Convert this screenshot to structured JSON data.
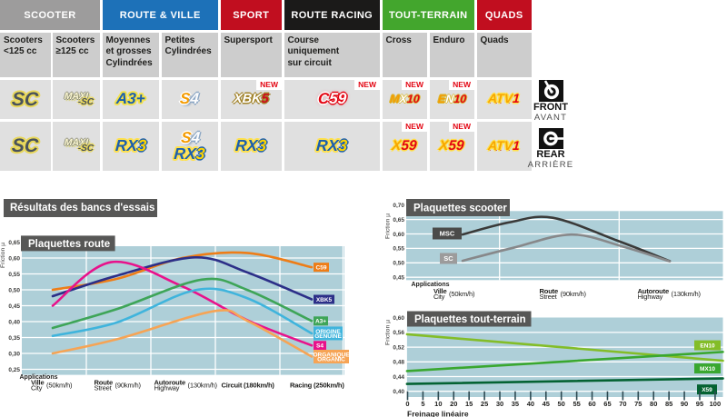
{
  "table": {
    "groups": [
      {
        "label": "SCOOTER",
        "color": "#9d9c9c",
        "cols": [
          0,
          1
        ]
      },
      {
        "label": "ROUTE & VILLE",
        "color": "#1d71b8",
        "cols": [
          2,
          3
        ]
      },
      {
        "label": "SPORT",
        "color": "#c10e1f",
        "cols": [
          4
        ]
      },
      {
        "label": "ROUTE RACING",
        "color": "#1b1a19",
        "cols": [
          5
        ]
      },
      {
        "label": "TOUT-TERRAIN",
        "color": "#43a62d",
        "cols": [
          6,
          7
        ]
      },
      {
        "label": "QUADS",
        "color": "#c10e1f",
        "cols": [
          8
        ]
      }
    ],
    "columns": [
      {
        "subtitle": "Scooters\n<125 cc",
        "front": {
          "logo": [
            [
              [
                "SC",
                "lg-sc"
              ]
            ]
          ],
          "new": false
        },
        "rear": {
          "logo": [
            [
              [
                "SC",
                "lg-sc"
              ]
            ]
          ],
          "new": false
        }
      },
      {
        "subtitle": "Scooters\n≥125 cc",
        "front": {
          "logo": [
            [
              [
                "MAXI",
                "lg-maxi"
              ],
              [
                "-SC",
                "lg-maxisc"
              ]
            ]
          ],
          "new": false
        },
        "rear": {
          "logo": [
            [
              [
                "MAXI",
                "lg-maxi"
              ],
              [
                "-SC",
                "lg-maxisc"
              ]
            ]
          ],
          "new": false
        }
      },
      {
        "subtitle": "Moyennes\net grosses\nCylindrées",
        "front": {
          "logo": [
            [
              [
                "A3+",
                "lg-a3"
              ]
            ]
          ],
          "new": false
        },
        "rear": {
          "logo": [
            [
              [
                "RX",
                "lg-rx"
              ],
              [
                "3",
                "lg-r3"
              ]
            ]
          ],
          "new": false
        }
      },
      {
        "subtitle": "Petites\nCylindrées",
        "front": {
          "logo": [
            [
              [
                "S",
                "lg-s4s"
              ],
              [
                "4",
                "lg-s44"
              ]
            ]
          ],
          "new": false
        },
        "rear": {
          "logo": [
            [
              [
                "S",
                "lg-s4s"
              ],
              [
                "4",
                "lg-s44"
              ]
            ],
            [
              [
                "RX",
                "lg-rx"
              ],
              [
                "3",
                "lg-r3"
              ]
            ]
          ],
          "new": false
        }
      },
      {
        "subtitle": "Supersport",
        "front": {
          "logo": [
            [
              [
                "XBK",
                "lg-xbk"
              ],
              [
                "5",
                "lg-k5"
              ]
            ]
          ],
          "new": true
        },
        "rear": {
          "logo": [
            [
              [
                "RX",
                "lg-rx"
              ],
              [
                "3",
                "lg-r3"
              ]
            ]
          ],
          "new": false
        }
      },
      {
        "subtitle": "Course\nuniquement\nsur circuit",
        "front": {
          "logo": [
            [
              [
                "C",
                "lg-c"
              ],
              [
                "59",
                "lg-59"
              ]
            ]
          ],
          "new": true
        },
        "rear": {
          "logo": [
            [
              [
                "RX",
                "lg-rx"
              ],
              [
                "3",
                "lg-r3"
              ]
            ]
          ],
          "new": false
        }
      },
      {
        "subtitle": "Cross",
        "front": {
          "logo": [
            [
              [
                "M",
                "lg-or"
              ],
              [
                "X",
                "lg-wh"
              ],
              [
                "10",
                "lg-rd"
              ]
            ]
          ],
          "new": true
        },
        "rear": {
          "logo": [
            [
              [
                "X",
                "lg-or2"
              ],
              [
                "59",
                "lg-rd3"
              ]
            ]
          ],
          "new": true
        }
      },
      {
        "subtitle": "Enduro",
        "front": {
          "logo": [
            [
              [
                "E",
                "lg-or"
              ],
              [
                "N",
                "lg-wh"
              ],
              [
                "10",
                "lg-rd"
              ]
            ]
          ],
          "new": true
        },
        "rear": {
          "logo": [
            [
              [
                "X",
                "lg-or2"
              ],
              [
                "59",
                "lg-rd3"
              ]
            ]
          ],
          "new": true
        }
      },
      {
        "subtitle": "Quads",
        "front": {
          "logo": [
            [
              [
                "ATV",
                "lg-atv"
              ],
              [
                "1",
                "lg-rd2"
              ]
            ]
          ],
          "new": false
        },
        "rear": {
          "logo": [
            [
              [
                "ATV",
                "lg-atv"
              ],
              [
                "1",
                "lg-rd2"
              ]
            ]
          ],
          "new": false
        }
      }
    ],
    "new_label": "NEW",
    "front": {
      "label": "FRONT",
      "sub": "AVANT"
    },
    "rear": {
      "label": "REAR",
      "sub": "ARRIÈRE"
    }
  },
  "results_title": "Résultats des bancs d'essais",
  "chart_data": [
    {
      "id": "route",
      "type": "line",
      "title": "Plaquettes route",
      "ylabel": "Friction µ",
      "xlabel": "Applications",
      "ylim": [
        0.25,
        0.65
      ],
      "y_ticks": [
        "0,65",
        "0,60",
        "0,55",
        "0,50",
        "0,45",
        "0,40",
        "0,35",
        "0,30",
        "0,25"
      ],
      "categories": [
        {
          "line1": "Ville",
          "line2": "City",
          "speed": "(50km/h)"
        },
        {
          "line1": "Route",
          "line2": "Street",
          "speed": "(90km/h)"
        },
        {
          "line1": "Autoroute",
          "line2": "Highway",
          "speed": "(130km/h)"
        },
        {
          "line1": "Circuit",
          "speed": "(180km/h)"
        },
        {
          "line1": "Racing",
          "speed": "(250km/h)"
        }
      ],
      "series": [
        {
          "name": "C59",
          "label": [
            "C59"
          ],
          "color": "#ee7d17",
          "points": [
            [
              0,
              0.5
            ],
            [
              1,
              0.535
            ],
            [
              2,
              0.6
            ],
            [
              3,
              0.616
            ],
            [
              4,
              0.571
            ]
          ]
        },
        {
          "name": "XBK5",
          "label": [
            "XBK5"
          ],
          "color": "#2c2f88",
          "points": [
            [
              0,
              0.48
            ],
            [
              1,
              0.545
            ],
            [
              2.2,
              0.602
            ],
            [
              3,
              0.555
            ],
            [
              4,
              0.47
            ]
          ]
        },
        {
          "name": "S4",
          "label": [
            "S4"
          ],
          "color": "#e8128b",
          "points": [
            [
              0,
              0.45
            ],
            [
              0.9,
              0.587
            ],
            [
              2,
              0.511
            ],
            [
              3,
              0.405
            ],
            [
              4,
              0.325
            ]
          ]
        },
        {
          "name": "A3+",
          "label": [
            "A3+"
          ],
          "color": "#3ea558",
          "points": [
            [
              0,
              0.38
            ],
            [
              1,
              0.44
            ],
            [
              2.3,
              0.532
            ],
            [
              3,
              0.5
            ],
            [
              4,
              0.402
            ]
          ]
        },
        {
          "name": "ORIGINE",
          "label": [
            "ORIGINE",
            "GENUINE"
          ],
          "color": "#3fb4dc",
          "points": [
            [
              0,
              0.355
            ],
            [
              1,
              0.398
            ],
            [
              2.2,
              0.499
            ],
            [
              3,
              0.474
            ],
            [
              4,
              0.363
            ]
          ]
        },
        {
          "name": "ORGANIQUE",
          "label": [
            "ORGANIQUE",
            "ORGANIC"
          ],
          "color": "#f6a455",
          "points": [
            [
              0,
              0.3
            ],
            [
              1,
              0.345
            ],
            [
              2.5,
              0.433
            ],
            [
              3,
              0.403
            ],
            [
              4,
              0.29
            ]
          ]
        }
      ]
    },
    {
      "id": "scooter",
      "type": "line",
      "title": "Plaquettes scooter",
      "ylabel": "Friction µ",
      "xlabel": "Applications",
      "ylim": [
        0.45,
        0.7
      ],
      "y_ticks": [
        "0,70",
        "0,65",
        "0,60",
        "0,55",
        "0,50",
        "0,45"
      ],
      "categories": [
        {
          "line1": "Ville",
          "line2": "City",
          "speed": "(50km/h)"
        },
        {
          "line1": "Route",
          "line2": "Street",
          "speed": "(90km/h)"
        },
        {
          "line1": "Autoroute",
          "line2": "Highway",
          "speed": "(130km/h)"
        }
      ],
      "series": [
        {
          "name": "MSC",
          "label": [
            "MSC"
          ],
          "color": "#3a3a39",
          "box_color": "#4b4b4a",
          "points": [
            [
              0,
              0.598
            ],
            [
              0.45,
              0.64
            ],
            [
              0.87,
              0.656
            ],
            [
              1.5,
              0.576
            ],
            [
              2,
              0.506
            ]
          ]
        },
        {
          "name": "SC",
          "label": [
            "SC"
          ],
          "color": "#87888a",
          "box_color": "#9c9b9b",
          "points": [
            [
              0,
              0.507
            ],
            [
              0.5,
              0.553
            ],
            [
              1.05,
              0.598
            ],
            [
              1.55,
              0.556
            ],
            [
              2,
              0.505
            ]
          ]
        }
      ]
    },
    {
      "id": "tt",
      "type": "line",
      "title": "Plaquettes tout-terrain",
      "ylabel": "Friction µ",
      "xlabel": "Freinage linéaire",
      "ylim": [
        0.4,
        0.6
      ],
      "y_ticks": [
        "0,60",
        "0,56",
        "0,52",
        "0,48",
        "0,44",
        "0,40"
      ],
      "x_ticks": [
        "0",
        "5",
        "10",
        "20",
        "15",
        "25",
        "30",
        "35",
        "40",
        "45",
        "50",
        "55",
        "60",
        "65",
        "70",
        "75",
        "80",
        "85",
        "90",
        "95",
        "100"
      ],
      "series": [
        {
          "name": "EN10",
          "label": [
            "EN10"
          ],
          "color": "#83bd28",
          "label_at": 0.525,
          "points": [
            [
              0,
              0.555
            ],
            [
              1,
              0.483
            ]
          ]
        },
        {
          "name": "MX10",
          "label": [
            "MX10"
          ],
          "color": "#39a72f",
          "label_at": 0.462,
          "points": [
            [
              0,
              0.455
            ],
            [
              1,
              0.507
            ]
          ]
        },
        {
          "name": "X59",
          "label": [
            "X59"
          ],
          "color": "#046232",
          "label_at": 0.405,
          "points": [
            [
              0,
              0.42
            ],
            [
              1,
              0.435
            ]
          ]
        }
      ]
    }
  ]
}
